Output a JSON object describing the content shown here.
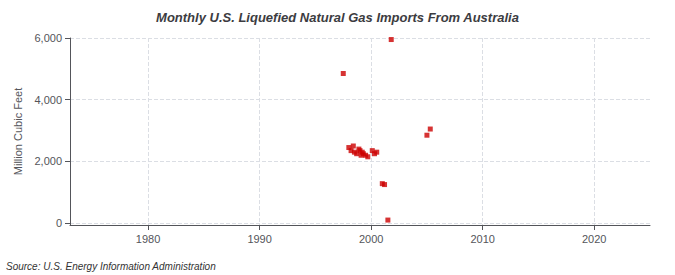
{
  "chart_data": {
    "type": "scatter",
    "title": "Monthly U.S. Liquefied Natural Gas Imports From Australia",
    "ylabel": "Million Cubic Feet",
    "annotation": "Source: U.S. Energy Information Administration",
    "color": "#cc0000",
    "marker": "square",
    "grid": true,
    "xlim": [
      1973,
      2025
    ],
    "ylim": [
      -60,
      6000
    ],
    "xticks": [
      1980,
      1990,
      2000,
      2010,
      2020
    ],
    "yticks": [
      0,
      {
        "value": 2000,
        "label": "2,000"
      },
      {
        "value": 4000,
        "label": "4,000"
      },
      {
        "value": 6000,
        "label": "6,000"
      }
    ],
    "x": [
      1997.5,
      1998.0,
      1998.2,
      1998.4,
      1998.5,
      1998.7,
      1998.9,
      1999.0,
      1999.1,
      1999.2,
      1999.3,
      1999.5,
      1999.7,
      2000.1,
      2000.3,
      2000.5,
      2001.0,
      2001.2,
      2001.5,
      2001.8,
      2005.0,
      2005.3
    ],
    "values": [
      4850,
      2450,
      2350,
      2500,
      2300,
      2250,
      2400,
      2350,
      2200,
      2300,
      2250,
      2200,
      2150,
      2350,
      2250,
      2300,
      1280,
      1250,
      100,
      5950,
      2850,
      3050
    ]
  }
}
